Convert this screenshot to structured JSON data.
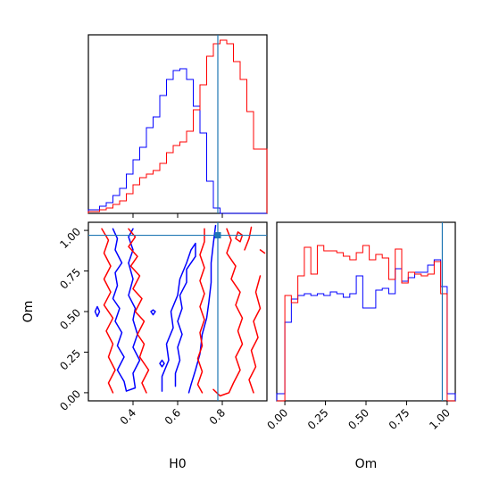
{
  "chart_data": {
    "type": "corner",
    "colors": {
      "series_a": "#0000ff",
      "series_b": "#ff0000",
      "truth": "#1f77b4"
    },
    "truth": {
      "H0": 0.78,
      "Om": 0.97
    },
    "panels": {
      "h0_hist": {
        "xlim": [
          0.2,
          1.0
        ],
        "ylim": [
          0,
          1.0
        ],
        "bins": [
          0.2,
          0.25,
          0.28,
          0.31,
          0.34,
          0.37,
          0.4,
          0.43,
          0.46,
          0.49,
          0.52,
          0.55,
          0.58,
          0.61,
          0.64,
          0.67,
          0.7,
          0.73,
          0.76,
          0.79,
          0.82,
          0.85,
          0.88,
          0.91,
          0.94,
          0.97,
          1.0
        ],
        "series": [
          {
            "color": "#0000ff",
            "values": [
              0.02,
              0.04,
              0.06,
              0.1,
              0.14,
              0.22,
              0.3,
              0.37,
              0.48,
              0.54,
              0.66,
              0.75,
              0.8,
              0.81,
              0.75,
              0.6,
              0.45,
              0.18,
              0.03,
              0,
              0,
              0,
              0,
              0,
              0,
              0
            ]
          },
          {
            "color": "#ff0000",
            "values": [
              0.01,
              0.02,
              0.03,
              0.05,
              0.07,
              0.11,
              0.16,
              0.2,
              0.22,
              0.24,
              0.28,
              0.34,
              0.38,
              0.4,
              0.46,
              0.58,
              0.72,
              0.88,
              0.95,
              0.97,
              0.95,
              0.85,
              0.75,
              0.57,
              0.36,
              0.36
            ]
          }
        ]
      },
      "om_hist": {
        "xlim": [
          -0.05,
          1.05
        ],
        "ylim": [
          0,
          1.0
        ],
        "xticks": [
          "0.00",
          "0.25",
          "0.50",
          "0.75",
          "1.00"
        ],
        "xtick_values": [
          0,
          0.25,
          0.5,
          0.75,
          1.0
        ],
        "xlabel": "Om",
        "bins": [
          -0.05,
          0.0,
          0.04,
          0.08,
          0.12,
          0.16,
          0.2,
          0.24,
          0.28,
          0.32,
          0.36,
          0.4,
          0.44,
          0.48,
          0.52,
          0.56,
          0.6,
          0.64,
          0.68,
          0.72,
          0.76,
          0.8,
          0.84,
          0.88,
          0.92,
          0.96,
          1.0,
          1.05
        ],
        "series": [
          {
            "color": "#0000ff",
            "values": [
              0.04,
              0.44,
              0.57,
              0.59,
              0.6,
              0.59,
              0.6,
              0.59,
              0.61,
              0.6,
              0.58,
              0.6,
              0.7,
              0.52,
              0.52,
              0.62,
              0.63,
              0.6,
              0.74,
              0.67,
              0.69,
              0.72,
              0.72,
              0.76,
              0.79,
              0.64,
              0.04
            ]
          },
          {
            "color": "#ff0000",
            "values": [
              0,
              0.59,
              0.55,
              0.7,
              0.86,
              0.71,
              0.87,
              0.84,
              0.84,
              0.83,
              0.81,
              0.79,
              0.83,
              0.87,
              0.79,
              0.82,
              0.8,
              0.68,
              0.85,
              0.66,
              0.72,
              0.71,
              0.7,
              0.71,
              0.78,
              0.6,
              0
            ]
          }
        ]
      },
      "joint": {
        "xlim": [
          0.2,
          1.0
        ],
        "ylim": [
          -0.05,
          1.05
        ],
        "xticks": [
          "0.4",
          "0.6",
          "0.8"
        ],
        "xtick_values": [
          0.4,
          0.6,
          0.8
        ],
        "yticks": [
          "0.00",
          "0.25",
          "0.50",
          "0.75",
          "1.00"
        ],
        "ytick_values": [
          0,
          0.25,
          0.5,
          0.75,
          1.0
        ],
        "xlabel": "H0",
        "ylabel": "Om",
        "contours": [
          {
            "color": "#0000ff",
            "points": [
              [
                0.31,
                1.01
              ],
              [
                0.33,
                0.95
              ],
              [
                0.32,
                0.88
              ],
              [
                0.35,
                0.8
              ],
              [
                0.32,
                0.74
              ],
              [
                0.33,
                0.66
              ],
              [
                0.31,
                0.58
              ],
              [
                0.34,
                0.52
              ],
              [
                0.32,
                0.44
              ],
              [
                0.35,
                0.37
              ],
              [
                0.33,
                0.29
              ],
              [
                0.36,
                0.22
              ],
              [
                0.33,
                0.14
              ],
              [
                0.36,
                0.07
              ],
              [
                0.37,
                0.01
              ],
              [
                0.41,
                0.03
              ],
              [
                0.4,
                0.12
              ],
              [
                0.43,
                0.2
              ],
              [
                0.4,
                0.28
              ],
              [
                0.42,
                0.36
              ],
              [
                0.4,
                0.45
              ],
              [
                0.41,
                0.52
              ],
              [
                0.38,
                0.6
              ],
              [
                0.4,
                0.7
              ],
              [
                0.38,
                0.8
              ],
              [
                0.4,
                0.88
              ],
              [
                0.38,
                0.96
              ],
              [
                0.4,
                1.01
              ]
            ]
          },
          {
            "color": "#0000ff",
            "points": [
              [
                0.53,
                0.01
              ],
              [
                0.53,
                0.1
              ],
              [
                0.56,
                0.2
              ],
              [
                0.55,
                0.3
              ],
              [
                0.58,
                0.4
              ],
              [
                0.57,
                0.5
              ],
              [
                0.6,
                0.6
              ],
              [
                0.61,
                0.7
              ],
              [
                0.64,
                0.8
              ],
              [
                0.66,
                0.88
              ],
              [
                0.68,
                0.92
              ],
              [
                0.68,
                0.84
              ],
              [
                0.64,
                0.76
              ],
              [
                0.64,
                0.68
              ],
              [
                0.61,
                0.6
              ],
              [
                0.62,
                0.52
              ],
              [
                0.6,
                0.44
              ],
              [
                0.62,
                0.36
              ],
              [
                0.6,
                0.28
              ],
              [
                0.61,
                0.2
              ],
              [
                0.59,
                0.12
              ],
              [
                0.59,
                0.04
              ]
            ]
          },
          {
            "color": "#0000ff",
            "points": [
              [
                0.65,
                0.0
              ],
              [
                0.66,
                0.05
              ],
              [
                0.68,
                0.14
              ],
              [
                0.7,
                0.24
              ],
              [
                0.71,
                0.36
              ],
              [
                0.73,
                0.46
              ],
              [
                0.74,
                0.56
              ],
              [
                0.75,
                0.68
              ],
              [
                0.75,
                0.8
              ],
              [
                0.76,
                0.92
              ],
              [
                0.77,
                1.03
              ]
            ]
          },
          {
            "color": "#0000ff",
            "points": [
              [
                0.24,
                0.53
              ],
              [
                0.23,
                0.5
              ],
              [
                0.24,
                0.47
              ],
              [
                0.25,
                0.5
              ],
              [
                0.24,
                0.53
              ]
            ]
          },
          {
            "color": "#0000ff",
            "points": [
              [
                0.53,
                0.2
              ],
              [
                0.52,
                0.18
              ],
              [
                0.53,
                0.16
              ],
              [
                0.54,
                0.18
              ],
              [
                0.53,
                0.2
              ]
            ]
          },
          {
            "color": "#0000ff",
            "points": [
              [
                0.49,
                0.51
              ],
              [
                0.48,
                0.5
              ],
              [
                0.49,
                0.48
              ],
              [
                0.5,
                0.5
              ],
              [
                0.49,
                0.51
              ]
            ]
          },
          {
            "color": "#ff0000",
            "points": [
              [
                0.26,
                1.01
              ],
              [
                0.29,
                0.94
              ],
              [
                0.27,
                0.86
              ],
              [
                0.3,
                0.78
              ],
              [
                0.27,
                0.7
              ],
              [
                0.3,
                0.62
              ],
              [
                0.27,
                0.54
              ],
              [
                0.31,
                0.46
              ],
              [
                0.28,
                0.38
              ],
              [
                0.31,
                0.3
              ],
              [
                0.29,
                0.22
              ],
              [
                0.32,
                0.14
              ],
              [
                0.29,
                0.06
              ],
              [
                0.31,
                0.0
              ]
            ]
          },
          {
            "color": "#ff0000",
            "points": [
              [
                0.38,
                1.01
              ],
              [
                0.41,
                0.96
              ],
              [
                0.38,
                0.9
              ],
              [
                0.42,
                0.84
              ],
              [
                0.39,
                0.78
              ],
              [
                0.43,
                0.72
              ],
              [
                0.4,
                0.64
              ],
              [
                0.44,
                0.58
              ],
              [
                0.41,
                0.5
              ],
              [
                0.45,
                0.44
              ],
              [
                0.42,
                0.36
              ],
              [
                0.45,
                0.3
              ],
              [
                0.43,
                0.22
              ],
              [
                0.47,
                0.14
              ],
              [
                0.44,
                0.06
              ],
              [
                0.46,
                0.0
              ]
            ]
          },
          {
            "color": "#ff0000",
            "points": [
              [
                0.72,
                1.01
              ],
              [
                0.72,
                0.93
              ],
              [
                0.7,
                0.85
              ],
              [
                0.72,
                0.77
              ],
              [
                0.7,
                0.69
              ],
              [
                0.72,
                0.61
              ],
              [
                0.7,
                0.53
              ],
              [
                0.72,
                0.45
              ],
              [
                0.7,
                0.37
              ],
              [
                0.71,
                0.29
              ],
              [
                0.69,
                0.21
              ],
              [
                0.71,
                0.13
              ],
              [
                0.69,
                0.05
              ],
              [
                0.71,
                0.0
              ]
            ]
          },
          {
            "color": "#ff0000",
            "points": [
              [
                0.82,
                1.01
              ],
              [
                0.84,
                0.94
              ],
              [
                0.82,
                0.86
              ],
              [
                0.86,
                0.78
              ],
              [
                0.84,
                0.7
              ],
              [
                0.88,
                0.62
              ],
              [
                0.86,
                0.54
              ],
              [
                0.89,
                0.46
              ],
              [
                0.87,
                0.38
              ],
              [
                0.89,
                0.3
              ],
              [
                0.86,
                0.22
              ],
              [
                0.88,
                0.14
              ],
              [
                0.85,
                0.06
              ],
              [
                0.83,
                0.0
              ],
              [
                0.79,
                -0.02
              ],
              [
                0.76,
                0.02
              ]
            ]
          },
          {
            "color": "#ff0000",
            "points": [
              [
                0.93,
                1.02
              ],
              [
                0.92,
                0.95
              ],
              [
                0.9,
                0.88
              ]
            ]
          },
          {
            "color": "#ff0000",
            "points": [
              [
                0.87,
                0.99
              ],
              [
                0.86,
                0.95
              ],
              [
                0.88,
                0.93
              ],
              [
                0.89,
                0.97
              ],
              [
                0.87,
                0.99
              ]
            ]
          },
          {
            "color": "#ff0000",
            "points": [
              [
                0.97,
                0.88
              ],
              [
                0.99,
                0.86
              ]
            ]
          },
          {
            "color": "#ff0000",
            "points": [
              [
                0.97,
                0.72
              ],
              [
                0.95,
                0.62
              ],
              [
                0.97,
                0.52
              ],
              [
                0.94,
                0.44
              ],
              [
                0.96,
                0.34
              ],
              [
                0.93,
                0.26
              ],
              [
                0.95,
                0.16
              ],
              [
                0.92,
                0.08
              ],
              [
                0.94,
                0.0
              ]
            ]
          }
        ]
      }
    }
  }
}
